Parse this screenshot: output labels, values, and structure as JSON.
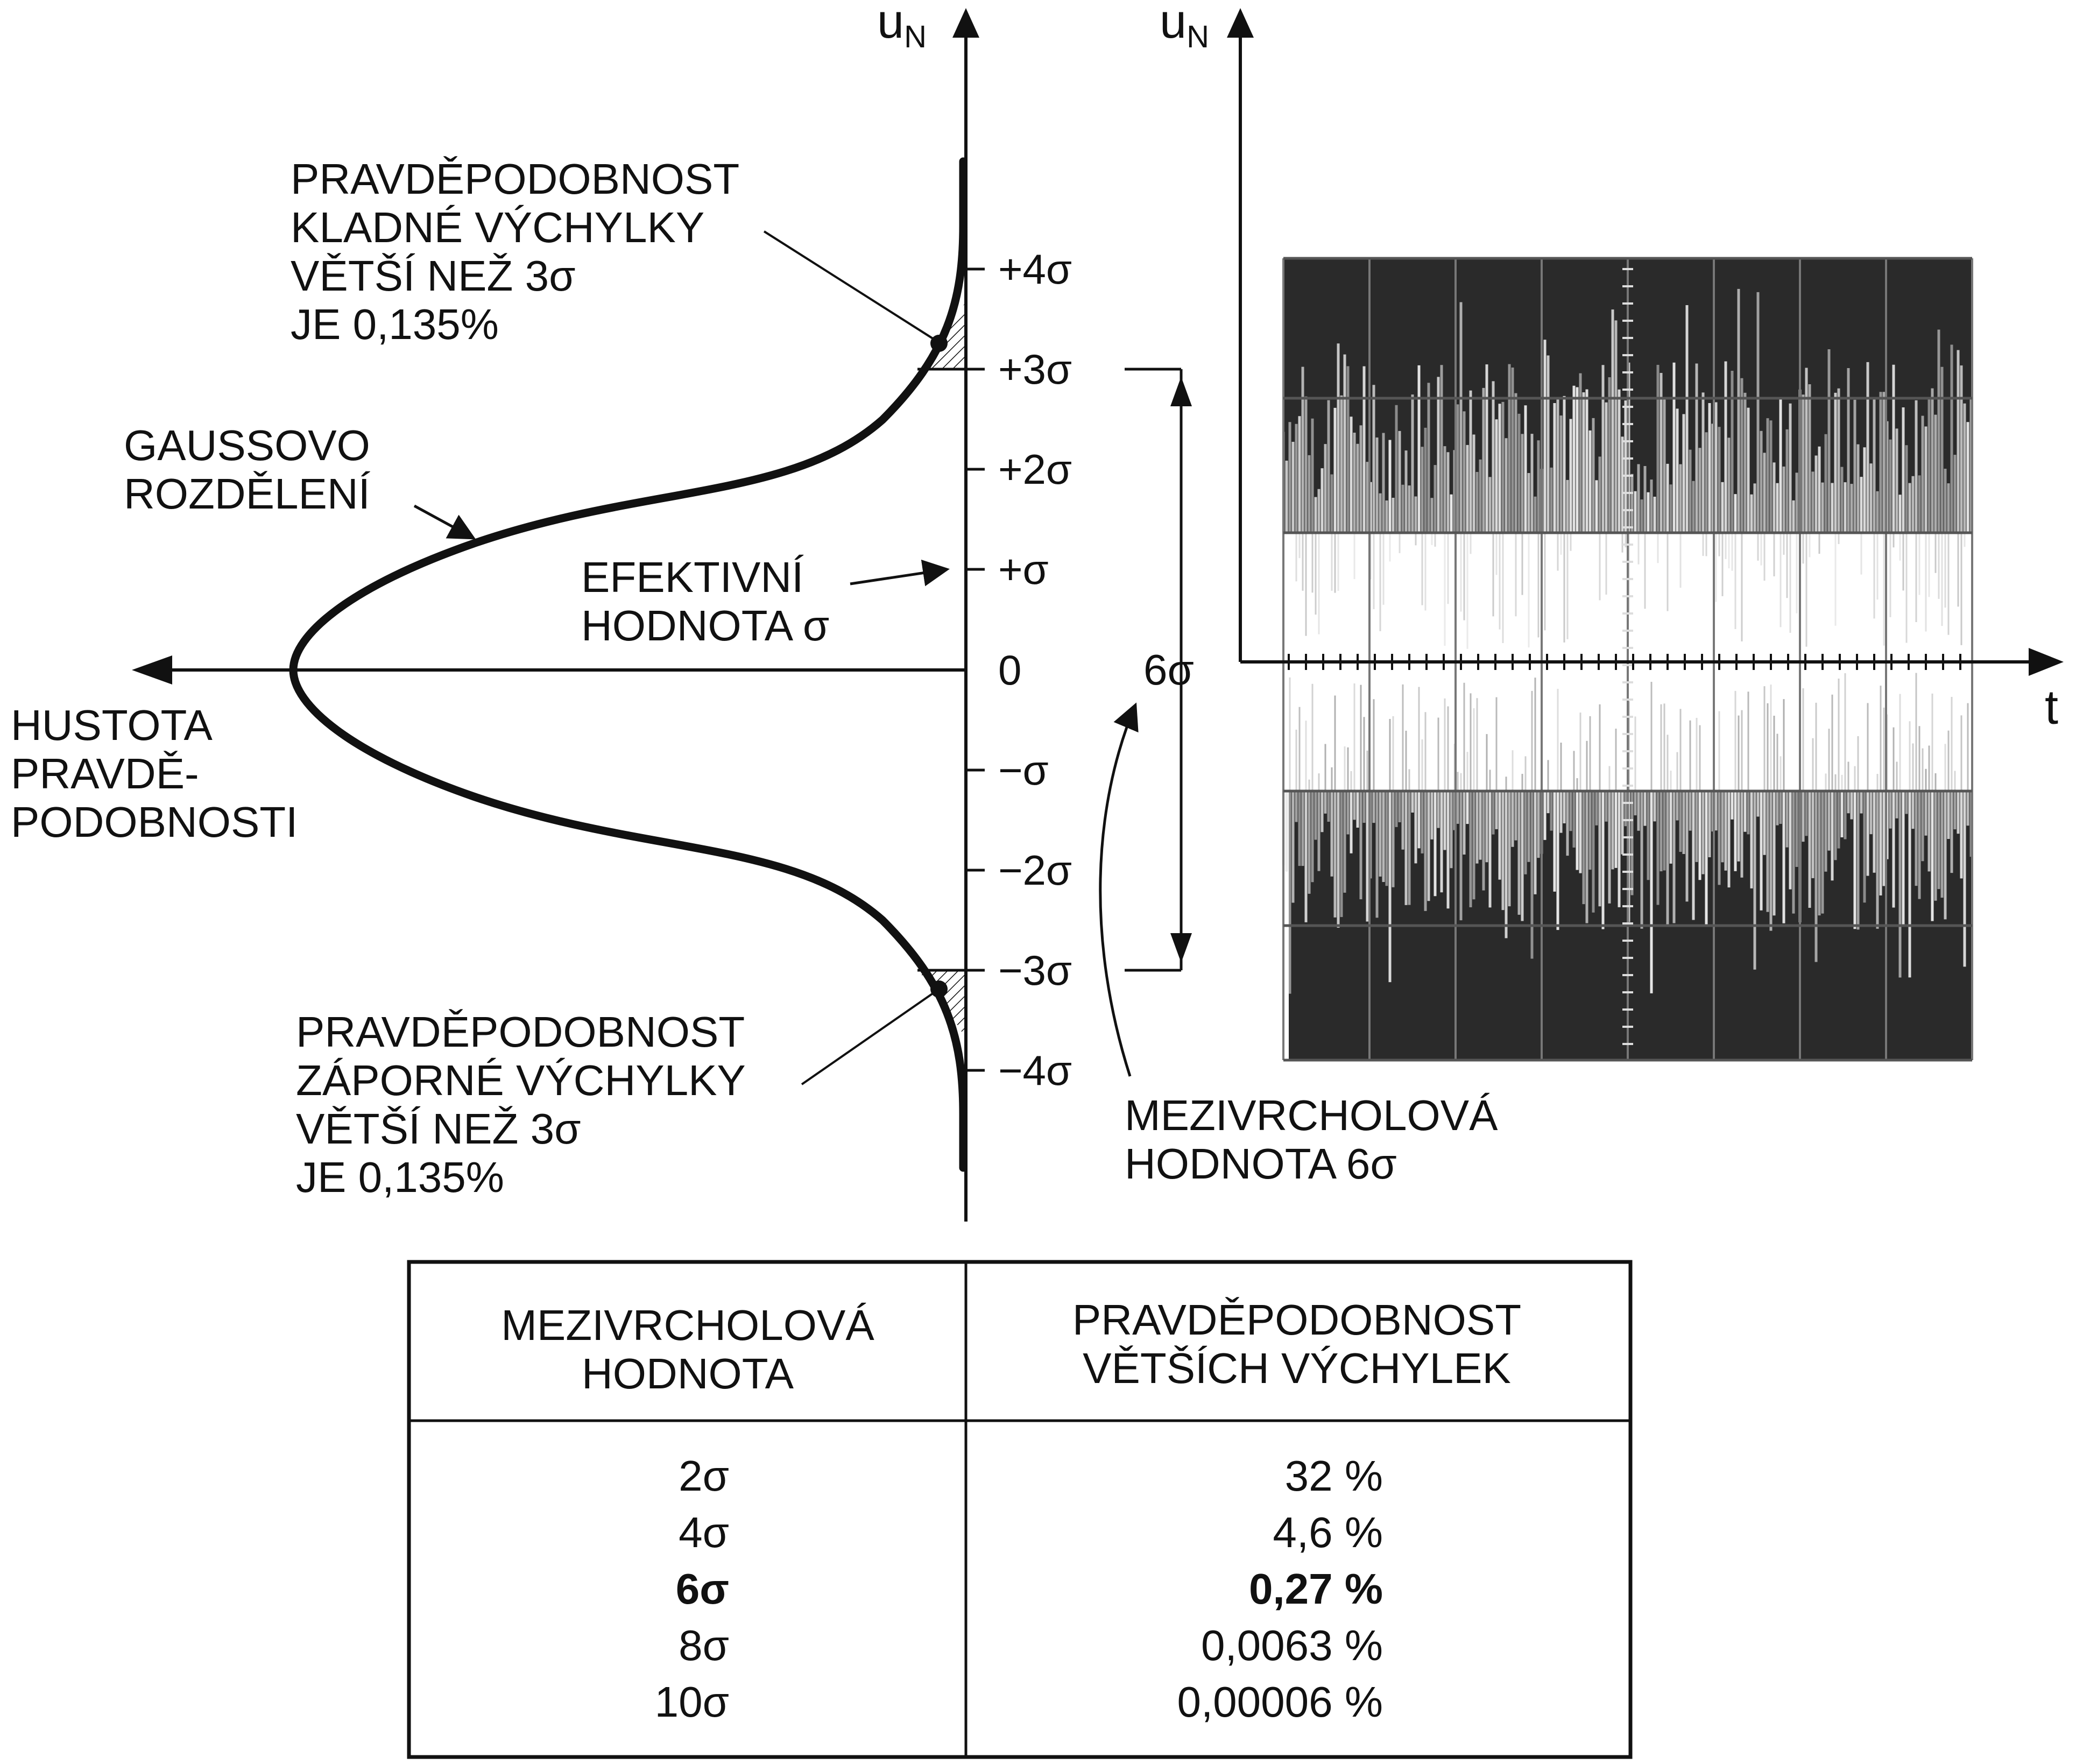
{
  "axes": {
    "vertical_left": "u",
    "vertical_left_sub": "N",
    "vertical_right": "u",
    "vertical_right_sub": "N",
    "horizontal_right": "t"
  },
  "ticks": [
    "+4σ",
    "+3σ",
    "+2σ",
    "+σ",
    "0",
    "−σ",
    "−2σ",
    "−3σ",
    "−4σ"
  ],
  "labels": {
    "density": [
      "HUSTOTA",
      "PRAVDĚ-",
      "PODOBNOSTI"
    ],
    "gauss": [
      "GAUSSOVO",
      "ROZDĚLENÍ"
    ],
    "effective": [
      "EFEKTIVNÍ",
      "HODNOTA σ"
    ],
    "prob_pos": [
      "PRAVDĚPODOBNOST",
      "KLADNÉ VÝCHYLKY",
      "VĚTŠÍ NEŽ 3σ",
      "JE 0,135%"
    ],
    "prob_neg": [
      "PRAVDĚPODOBNOST",
      "ZÁPORNÉ VÝCHYLKY",
      "VĚTŠÍ NEŽ 3σ",
      "JE 0,135%"
    ],
    "sixsigma": "6σ",
    "peak_to_peak": [
      "MEZIVRCHOLOVÁ",
      "HODNOTA 6σ"
    ]
  },
  "table": {
    "header_left": [
      "MEZIVRCHOLOVÁ",
      "HODNOTA"
    ],
    "header_right": [
      "PRAVDĚPODOBNOST",
      "VĚTŠÍCH VÝCHYLEK"
    ],
    "rows": [
      {
        "value": "2σ",
        "prob": "32 %",
        "bold": false
      },
      {
        "value": "4σ",
        "prob": "4,6 %",
        "bold": false
      },
      {
        "value": "6σ",
        "prob": "0,27 %",
        "bold": true
      },
      {
        "value": "8σ",
        "prob": "0,0063 %",
        "bold": false
      },
      {
        "value": "10σ",
        "prob": "0,00006 %",
        "bold": false
      }
    ]
  },
  "colors": {
    "ink": "#111111",
    "screen_dark": "#2a2a2a",
    "noise_light": "#e8e8e8"
  }
}
